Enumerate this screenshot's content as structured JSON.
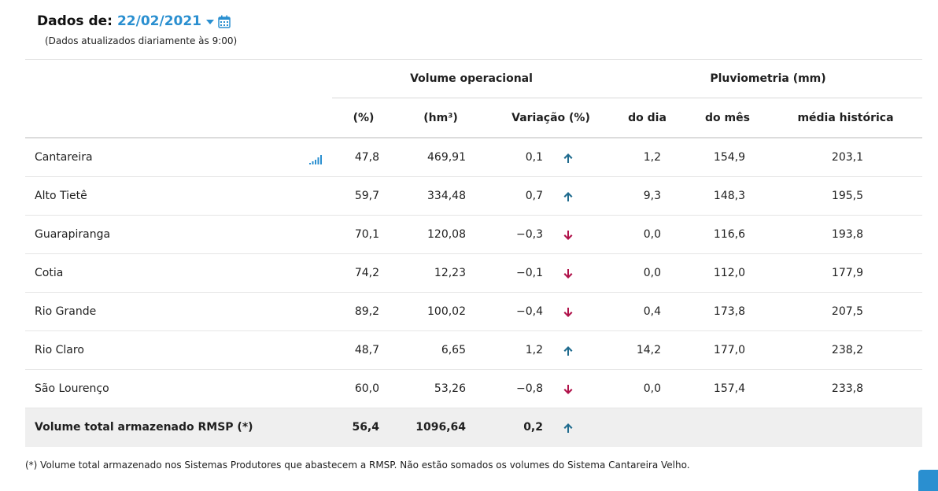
{
  "header": {
    "date_prefix": "Dados de:",
    "date_value": "22/02/2021",
    "update_note": "(Dados atualizados diariamente às 9:00)"
  },
  "groups": {
    "volume": "Volume operacional",
    "pluvio": "Pluviometria (mm)"
  },
  "columns": {
    "pct": "(%)",
    "hm3": "(hm³)",
    "var": "Variação (%)",
    "dia": "do dia",
    "mes": "do mês",
    "media": "média histórica"
  },
  "rows": [
    {
      "name": "Cantareira",
      "pct": "47,8",
      "hm3": "469,91",
      "var": "0,1",
      "trend": "up",
      "dia": "1,2",
      "mes": "154,9",
      "media": "203,1"
    },
    {
      "name": "Alto Tietê",
      "pct": "59,7",
      "hm3": "334,48",
      "var": "0,7",
      "trend": "up",
      "dia": "9,3",
      "mes": "148,3",
      "media": "195,5"
    },
    {
      "name": "Guarapiranga",
      "pct": "70,1",
      "hm3": "120,08",
      "var": "−0,3",
      "trend": "down",
      "dia": "0,0",
      "mes": "116,6",
      "media": "193,8"
    },
    {
      "name": "Cotia",
      "pct": "74,2",
      "hm3": "12,23",
      "var": "−0,1",
      "trend": "down",
      "dia": "0,0",
      "mes": "112,0",
      "media": "177,9"
    },
    {
      "name": "Rio Grande",
      "pct": "89,2",
      "hm3": "100,02",
      "var": "−0,4",
      "trend": "down",
      "dia": "0,4",
      "mes": "173,8",
      "media": "207,5"
    },
    {
      "name": "Rio Claro",
      "pct": "48,7",
      "hm3": "6,65",
      "var": "1,2",
      "trend": "up",
      "dia": "14,2",
      "mes": "177,0",
      "media": "238,2"
    },
    {
      "name": "São Lourenço",
      "pct": "60,0",
      "hm3": "53,26",
      "var": "−0,8",
      "trend": "down",
      "dia": "0,0",
      "mes": "157,4",
      "media": "233,8"
    }
  ],
  "total": {
    "name": "Volume total armazenado RMSP (*)",
    "pct": "56,4",
    "hm3": "1096,64",
    "var": "0,2",
    "trend": "up"
  },
  "footnote": "(*) Volume total armazenado nos Sistemas Produtores que abastecem a RMSP. Não estão somados os volumes do Sistema Cantareira Velho.",
  "icons": {
    "up_color": "#1f6b8e",
    "down_color": "#b0124a",
    "accent": "#2a8fd0"
  }
}
